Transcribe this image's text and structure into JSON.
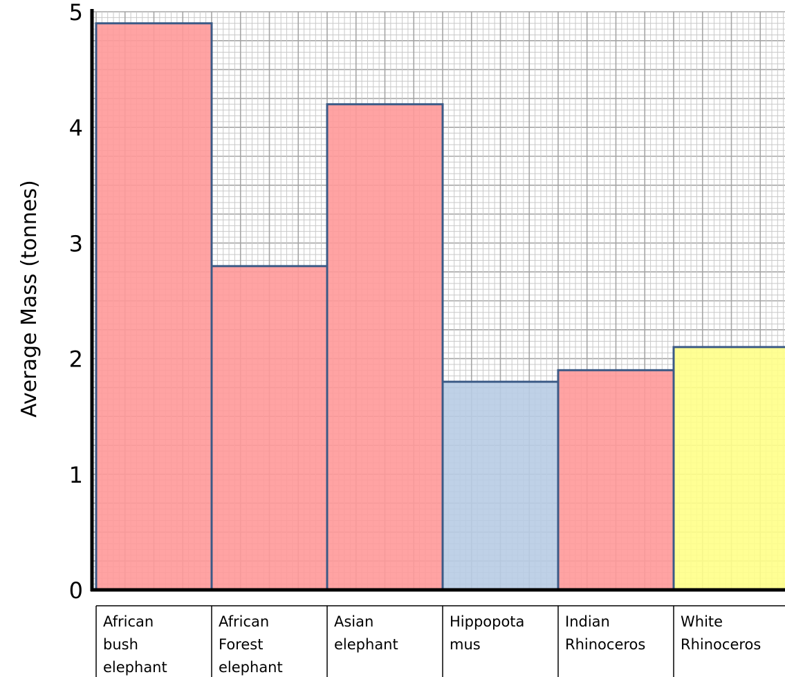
{
  "chart_data": {
    "type": "bar",
    "title": "",
    "xlabel": "",
    "ylabel": "Average Mass (tonnes)",
    "ylim": [
      0,
      5
    ],
    "yticks": [
      "0",
      "1",
      "2",
      "3",
      "4",
      "5"
    ],
    "grid": true,
    "categories": [
      [
        "African",
        "bush",
        "elephant"
      ],
      [
        "African",
        "Forest",
        "elephant"
      ],
      [
        "Asian",
        "elephant"
      ],
      [
        "Hippopota",
        "mus"
      ],
      [
        "Indian",
        "Rhinoceros"
      ],
      [
        "White",
        "Rhinoceros"
      ]
    ],
    "values": [
      4.9,
      2.8,
      4.2,
      1.8,
      1.9,
      2.1
    ],
    "bar_colors": [
      "#ff9999",
      "#ff9999",
      "#ff9999",
      "#b8cce4",
      "#ff9999",
      "#ffff88"
    ],
    "bar_outline": "#3b5a86",
    "grid_minor_color": "#c9c9c9",
    "grid_major_color": "#a5a5a5"
  }
}
